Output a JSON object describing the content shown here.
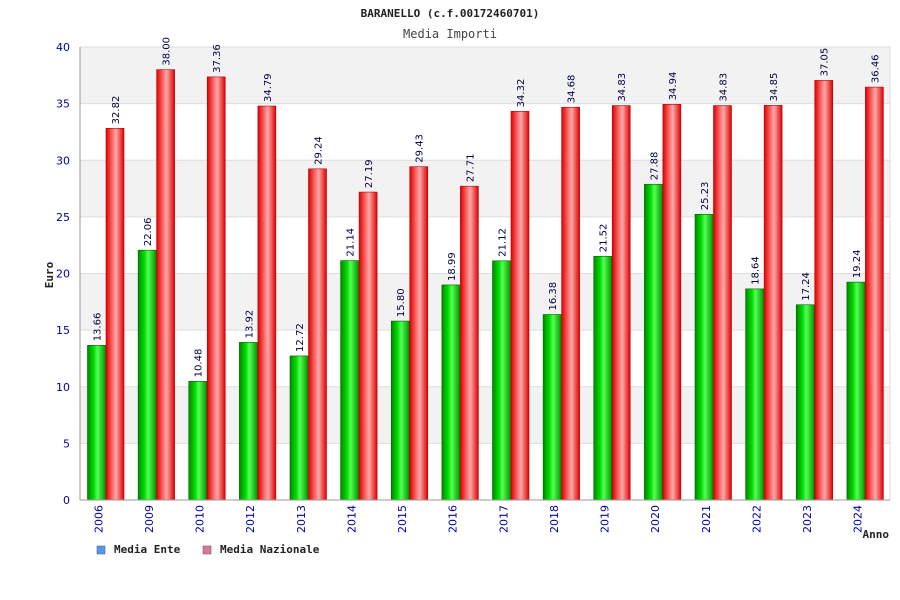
{
  "chart_data": {
    "type": "bar",
    "title": "BARANELLO (c.f.00172460701)",
    "subtitle": "Media Importi",
    "xlabel": "Anno",
    "ylabel": "Euro",
    "ylim": [
      0,
      40
    ],
    "yticks": [
      0,
      5,
      10,
      15,
      20,
      25,
      30,
      35,
      40
    ],
    "grid": true,
    "legend_position": "bottom-left",
    "categories": [
      "2006",
      "2009",
      "2010",
      "2012",
      "2013",
      "2014",
      "2015",
      "2016",
      "2017",
      "2018",
      "2019",
      "2020",
      "2021",
      "2022",
      "2023",
      "2024"
    ],
    "series": [
      {
        "name": "Media Ente",
        "color": "#00cc00",
        "legend_color": "#5599ee",
        "values": [
          13.66,
          22.06,
          10.48,
          13.92,
          12.72,
          21.14,
          15.8,
          18.99,
          21.12,
          16.38,
          21.52,
          27.88,
          25.23,
          18.64,
          17.24,
          19.24
        ],
        "labels": [
          "13.66",
          "22.06",
          "10.48",
          "13.92",
          "12.72",
          "21.14",
          "15.80",
          "18.99",
          "21.12",
          "16.38",
          "21.52",
          "27.88",
          "25.23",
          "18.64",
          "17.24",
          "19.24"
        ]
      },
      {
        "name": "Media Nazionale",
        "color": "#ee1111",
        "legend_color": "#dd7799",
        "values": [
          32.82,
          38.0,
          37.36,
          34.79,
          29.24,
          27.19,
          29.43,
          27.71,
          34.32,
          34.68,
          34.83,
          34.94,
          34.83,
          34.85,
          37.05,
          36.46
        ],
        "labels": [
          "32.82",
          "38.00",
          "37.36",
          "34.79",
          "29.24",
          "27.19",
          "29.43",
          "27.71",
          "34.32",
          "34.68",
          "34.83",
          "34.94",
          "34.83",
          "34.85",
          "37.05",
          "36.46"
        ]
      }
    ]
  }
}
